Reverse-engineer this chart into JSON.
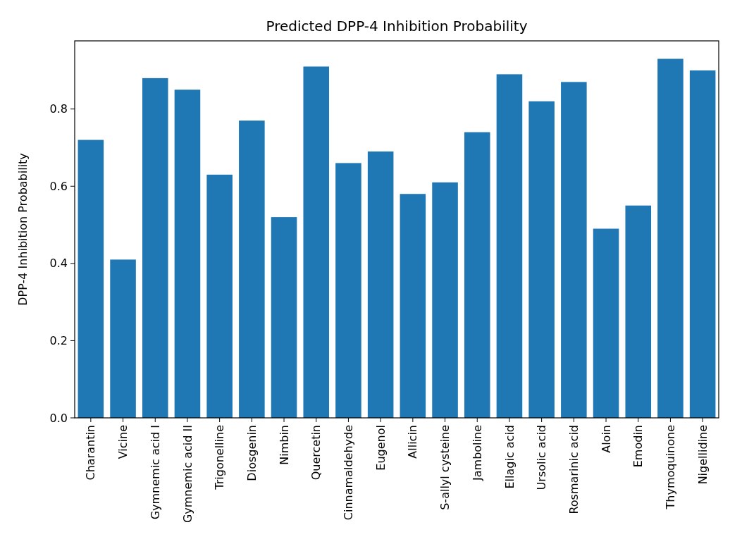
{
  "chart_data": {
    "type": "bar",
    "title": "Predicted DPP-4 Inhibition Probability",
    "ylabel": "DPP-4 Inhibition Probability",
    "categories": [
      "Charantin",
      "Vicine",
      "Gymnemic acid I",
      "Gymnemic acid II",
      "Trigonelline",
      "Diosgenin",
      "Nimbin",
      "Quercetin",
      "Cinnamaldehyde",
      "Eugenol",
      "Allicin",
      "S-allyl cysteine",
      "Jamboline",
      "Ellagic acid",
      "Ursolic acid",
      "Rosmarinic acid",
      "Aloin",
      "Emodin",
      "Thymoquinone",
      "Nigellidine"
    ],
    "values": [
      0.72,
      0.41,
      0.88,
      0.85,
      0.63,
      0.77,
      0.52,
      0.91,
      0.66,
      0.69,
      0.58,
      0.61,
      0.74,
      0.89,
      0.82,
      0.87,
      0.49,
      0.55,
      0.93,
      0.9
    ],
    "color": "#1f77b4",
    "ylim": [
      0,
      0.9765
    ],
    "yticks": [
      {
        "value": 0,
        "label": "0.0"
      },
      {
        "value": 0.2,
        "label": "0.2"
      },
      {
        "value": 0.4,
        "label": "0.4"
      },
      {
        "value": 0.6,
        "label": "0.6"
      },
      {
        "value": 0.8,
        "label": "0.8"
      }
    ],
    "grid": false
  }
}
